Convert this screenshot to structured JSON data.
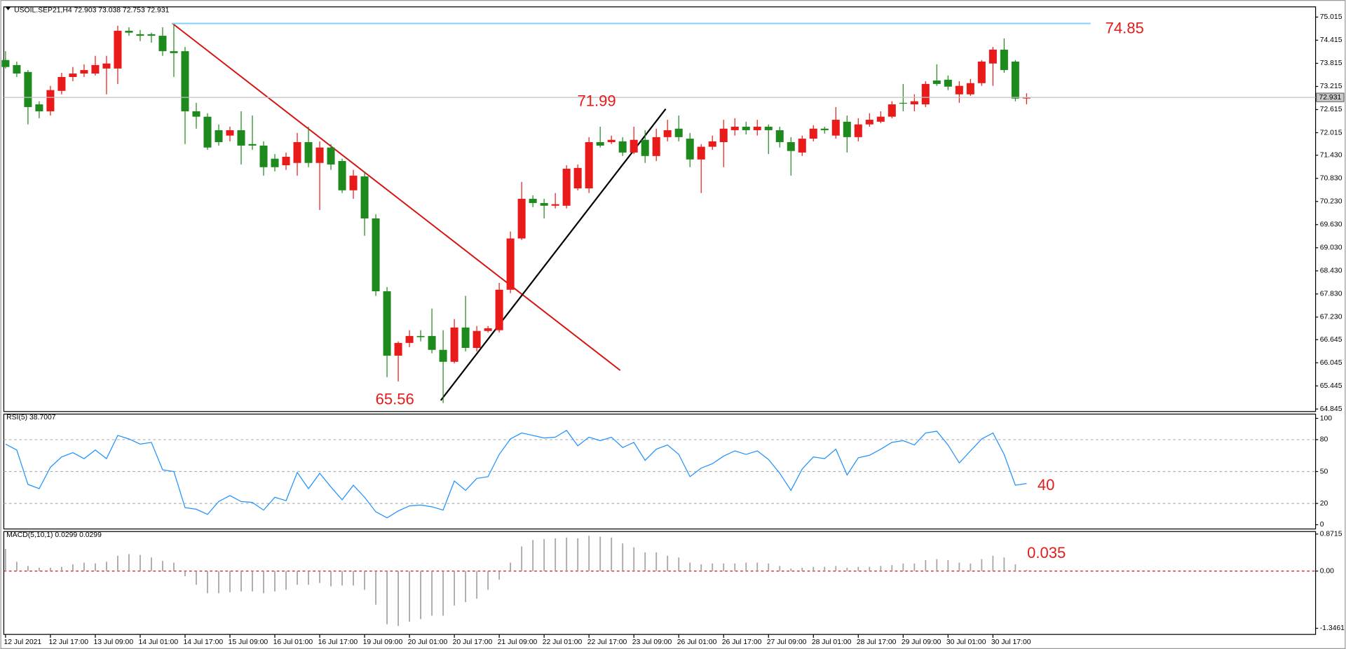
{
  "chart_data": [
    {
      "type": "candlestick",
      "title": "USOIL.SEP21,H4 72.903 73.038 72.753 72.931",
      "categories": [
        "12 Jul 2021",
        null,
        null,
        null,
        "12 Jul 17:00",
        null,
        null,
        null,
        "13 Jul 09:00",
        null,
        null,
        null,
        "14 Jul 01:00",
        null,
        null,
        null,
        "14 Jul 17:00",
        null,
        null,
        null,
        "15 Jul 09:00",
        null,
        null,
        null,
        "16 Jul 01:00",
        null,
        null,
        null,
        "16 Jul 17:00",
        null,
        null,
        null,
        "19 Jul 09:00",
        null,
        null,
        null,
        "20 Jul 01:00",
        null,
        null,
        null,
        "20 Jul 17:00",
        null,
        null,
        null,
        "21 Jul 09:00",
        null,
        null,
        null,
        "22 Jul 01:00",
        null,
        null,
        null,
        "22 Jul 17:00",
        null,
        null,
        null,
        "23 Jul 09:00",
        null,
        null,
        null,
        "26 Jul 01:00",
        null,
        null,
        null,
        "26 Jul 17:00",
        null,
        null,
        null,
        "27 Jul 09:00",
        null,
        null,
        null,
        "28 Jul 01:00",
        null,
        null,
        null,
        "28 Jul 17:00",
        null,
        null,
        null,
        "29 Jul 09:00",
        null,
        null,
        null,
        "30 Jul 01:00",
        null,
        null,
        null,
        "30 Jul 17:00",
        null,
        null,
        null
      ],
      "open": [
        73.9,
        73.77,
        73.59,
        72.75,
        72.57,
        73.1,
        73.46,
        73.55,
        73.55,
        73.68,
        73.68,
        74.66,
        74.57,
        74.57,
        74.53,
        74.13,
        74.13,
        72.57,
        72.43,
        72.08,
        71.94,
        72.08,
        71.72,
        71.68,
        71.34,
        71.17,
        71.23,
        71.77,
        71.23,
        71.63,
        71.28,
        70.52,
        70.88,
        69.79,
        67.9,
        66.23,
        66.56,
        66.74,
        66.74,
        66.38,
        66.07,
        66.96,
        66.43,
        66.87,
        66.89,
        67.94,
        69.27,
        70.3,
        70.19,
        70.12,
        70.12,
        70.57,
        70.57,
        71.77,
        71.77,
        71.79,
        71.5,
        71.83,
        71.41,
        71.9,
        72.12,
        71.86,
        71.32,
        71.65,
        71.77,
        72.08,
        72.17,
        72.08,
        72.17,
        72.08,
        71.77,
        71.5,
        71.86,
        72.12,
        71.94,
        72.3,
        71.9,
        72.23,
        72.3,
        72.43,
        72.79,
        72.75,
        72.75,
        73.37,
        73.39,
        73.01,
        73.01,
        73.3,
        73.81,
        74.17,
        73.86,
        72.903
      ],
      "high": [
        74.13,
        73.86,
        73.64,
        72.83,
        73.23,
        73.57,
        73.72,
        73.79,
        74.01,
        74.01,
        74.79,
        74.75,
        74.68,
        74.61,
        74.75,
        74.85,
        74.24,
        72.79,
        72.52,
        72.23,
        72.17,
        72.57,
        72.46,
        71.79,
        71.46,
        71.5,
        72.01,
        72.17,
        71.79,
        71.72,
        71.34,
        71.05,
        71.01,
        69.9,
        68.01,
        66.6,
        66.89,
        66.89,
        67.45,
        66.89,
        67.18,
        67.78,
        67.0,
        67.0,
        68.12,
        69.45,
        70.74,
        70.39,
        70.3,
        70.45,
        71.17,
        71.19,
        71.9,
        72.17,
        71.94,
        71.9,
        72.17,
        72.08,
        72.12,
        72.35,
        72.46,
        72.01,
        71.72,
        71.94,
        72.35,
        72.39,
        72.3,
        72.35,
        72.23,
        72.17,
        71.9,
        71.94,
        72.21,
        72.17,
        72.68,
        72.46,
        72.39,
        72.52,
        72.57,
        72.83,
        73.28,
        73.01,
        73.35,
        73.79,
        73.5,
        73.35,
        73.41,
        73.9,
        74.24,
        74.46,
        73.9,
        73.038
      ],
      "low": [
        73.68,
        73.46,
        72.23,
        72.39,
        72.46,
        73.01,
        73.35,
        73.46,
        73.5,
        73.01,
        73.28,
        74.53,
        74.39,
        74.35,
        74.01,
        73.46,
        71.72,
        72.12,
        71.57,
        71.68,
        71.79,
        71.19,
        71.57,
        70.9,
        71.01,
        71.05,
        70.9,
        71.12,
        70.01,
        71.05,
        70.45,
        70.3,
        69.34,
        67.78,
        65.67,
        65.56,
        66.45,
        66.6,
        66.29,
        65.0,
        66.03,
        66.34,
        66.34,
        66.83,
        66.83,
        67.85,
        69.23,
        70.08,
        69.79,
        70.05,
        70.05,
        70.52,
        70.45,
        71.63,
        71.72,
        71.41,
        71.46,
        71.23,
        71.28,
        71.79,
        71.79,
        71.12,
        70.45,
        71.57,
        71.12,
        71.94,
        71.97,
        71.94,
        71.46,
        71.63,
        70.9,
        71.41,
        71.79,
        71.99,
        71.86,
        71.5,
        71.79,
        72.17,
        72.26,
        72.39,
        72.57,
        72.57,
        72.68,
        73.23,
        73.12,
        72.79,
        72.97,
        73.23,
        73.23,
        73.57,
        72.83,
        72.753
      ],
      "close": [
        73.72,
        73.55,
        72.68,
        72.57,
        73.12,
        73.46,
        73.55,
        73.64,
        73.77,
        73.81,
        74.66,
        74.61,
        74.53,
        74.53,
        74.13,
        74.08,
        72.57,
        72.43,
        71.63,
        71.77,
        72.08,
        71.68,
        71.68,
        71.12,
        71.12,
        71.39,
        71.77,
        71.23,
        71.63,
        71.19,
        70.52,
        70.9,
        69.79,
        67.9,
        66.23,
        66.56,
        66.74,
        66.71,
        66.38,
        66.07,
        66.96,
        66.43,
        66.87,
        66.94,
        67.94,
        69.27,
        70.3,
        70.19,
        70.12,
        70.16,
        71.08,
        71.1,
        71.77,
        71.68,
        71.83,
        71.5,
        71.83,
        71.41,
        71.9,
        72.08,
        71.9,
        71.32,
        71.65,
        71.79,
        72.12,
        72.17,
        72.08,
        72.17,
        72.08,
        71.77,
        71.54,
        71.86,
        72.12,
        72.08,
        72.35,
        71.9,
        72.23,
        72.35,
        72.43,
        72.75,
        72.77,
        72.83,
        73.28,
        73.28,
        73.21,
        73.23,
        73.3,
        73.86,
        74.17,
        73.64,
        72.9,
        72.931
      ],
      "up_color": "#e81a1a",
      "down_color": "#1e8a1e",
      "ylim": [
        64.78,
        75.28
      ],
      "yticks": [
        75.015,
        74.415,
        73.815,
        73.215,
        72.615,
        72.015,
        {
          "value": 71.43,
          "label": "71.430"
        },
        {
          "value": 70.83,
          "label": "70.830"
        },
        {
          "value": 70.23,
          "label": "70.230"
        },
        {
          "value": 69.63,
          "label": "69.630"
        },
        {
          "value": 69.03,
          "label": "69.030"
        },
        {
          "value": 68.43,
          "label": "68.430"
        },
        {
          "value": 67.83,
          "label": "67.830"
        },
        {
          "value": 67.23,
          "label": "67.230"
        },
        66.645,
        66.045,
        65.445,
        64.845
      ],
      "annotations": [
        74.85,
        71.99,
        65.56
      ]
    },
    {
      "type": "line",
      "title": "RSI(5) 38.7007",
      "color": "#1e90ff",
      "level_color": "#b0b0b0",
      "values": [
        75.8,
        70.2,
        37.9,
        33.9,
        54.0,
        63.7,
        67.7,
        62.1,
        70.2,
        62.1,
        83.9,
        80.6,
        75.8,
        77.4,
        51.6,
        50.0,
        16.1,
        14.5,
        9.7,
        21.8,
        27.4,
        21.8,
        21.0,
        13.7,
        25.8,
        22.6,
        49.2,
        33.9,
        48.4,
        35.5,
        23.4,
        37.1,
        25.8,
        12.1,
        6.5,
        12.9,
        17.7,
        18.5,
        16.9,
        13.7,
        41.1,
        32.3,
        43.5,
        45.2,
        66.1,
        80.6,
        86.3,
        83.9,
        81.5,
        82.3,
        88.7,
        74.2,
        82.3,
        79.0,
        82.3,
        72.6,
        77.4,
        60.5,
        71.0,
        75.0,
        66.1,
        45.2,
        53.2,
        57.3,
        64.5,
        69.4,
        66.1,
        69.4,
        61.3,
        48.4,
        32.3,
        52.4,
        63.7,
        62.1,
        71.0,
        46.8,
        62.9,
        65.3,
        71.0,
        77.4,
        79.0,
        75.0,
        86.3,
        87.9,
        75.0,
        58.1,
        69.4,
        80.6,
        86.3,
        66.1,
        37.1,
        38.7
      ],
      "ylim": [
        -4,
        104
      ],
      "yticks": [
        0,
        20,
        50,
        80,
        100
      ],
      "annotations": [
        40
      ]
    },
    {
      "type": "bar",
      "title": "MACD(5,10,1) 0.0299 0.0299",
      "color": "#a8a8a8",
      "level_color": "#d01010",
      "values": [
        0.52,
        0.22,
        0.12,
        0.08,
        0.08,
        0.1,
        0.16,
        0.2,
        0.18,
        0.22,
        0.36,
        0.4,
        0.38,
        0.32,
        0.24,
        0.2,
        -0.12,
        -0.32,
        -0.52,
        -0.52,
        -0.5,
        -0.48,
        -0.48,
        -0.52,
        -0.48,
        -0.44,
        -0.32,
        -0.32,
        -0.28,
        -0.36,
        -0.34,
        -0.34,
        -0.44,
        -0.79,
        -1.25,
        -1.29,
        -1.19,
        -1.13,
        -1.05,
        -1.05,
        -0.81,
        -0.73,
        -0.65,
        -0.44,
        -0.2,
        0.2,
        0.58,
        0.73,
        0.75,
        0.77,
        0.79,
        0.77,
        0.83,
        0.81,
        0.79,
        0.65,
        0.56,
        0.44,
        0.44,
        0.36,
        0.32,
        0.2,
        0.16,
        0.18,
        0.18,
        0.18,
        0.2,
        0.2,
        0.18,
        0.12,
        0.06,
        0.08,
        0.1,
        0.1,
        0.12,
        0.08,
        0.1,
        0.1,
        0.12,
        0.14,
        0.18,
        0.18,
        0.26,
        0.28,
        0.26,
        0.2,
        0.18,
        0.28,
        0.36,
        0.32,
        0.16,
        0.0299
      ],
      "ylim": [
        -1.49,
        0.93
      ],
      "yticks": [
        -1.3461,
        {
          "value": 0,
          "label": "0.00"
        },
        0.8715
      ],
      "annotations": [
        0.035
      ]
    }
  ]
}
